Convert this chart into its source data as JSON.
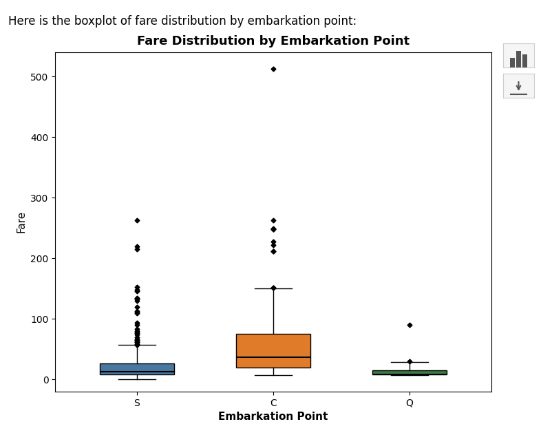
{
  "title": "Fare Distribution by Embarkation Point",
  "xlabel": "Embarkation Point",
  "ylabel": "Fare",
  "categories": [
    "S",
    "C",
    "Q"
  ],
  "colors": [
    "#4878a0",
    "#e07b2a",
    "#3a7d44"
  ],
  "ylim": [
    -20,
    540
  ],
  "yticks": [
    0,
    100,
    200,
    300,
    400,
    500
  ],
  "box_stats": {
    "S": {
      "whislo": 0.0,
      "q1": 8.05,
      "med": 13.0,
      "q3": 26.0,
      "whishi": 56.5,
      "fliers": [
        263.0,
        220.0,
        215.0,
        153.0,
        148.0,
        146.0,
        134.5,
        133.65,
        133.65,
        130.0,
        120.0,
        113.0,
        110.88,
        108.9,
        93.5,
        90.0,
        83.475,
        79.65,
        77.95,
        76.73,
        73.5,
        69.55,
        66.6,
        65.0,
        63.36,
        61.175,
        61.0,
        57.75,
        57.0,
        56.93
      ]
    },
    "C": {
      "whislo": 7.225,
      "q1": 19.0,
      "med": 36.25,
      "q3": 75.0,
      "whishi": 150.0,
      "fliers": [
        512.3292,
        263.0,
        249.0,
        247.5,
        247.5,
        227.525,
        221.7792,
        211.3375,
        211.3375,
        151.55,
        151.55
      ]
    },
    "Q": {
      "whislo": 6.75,
      "q1": 7.75,
      "med": 7.75,
      "q3": 15.5,
      "whishi": 29.125,
      "fliers": [
        90.0,
        29.7
      ]
    }
  },
  "header_text": "Here is the boxplot of fare distribution by embarkation point:",
  "background_color": "#ffffff",
  "plot_background": "#ffffff",
  "title_fontsize": 13,
  "label_fontsize": 11,
  "tick_fontsize": 10,
  "header_fontsize": 12,
  "figsize": [
    8.02,
    6.32
  ],
  "dpi": 100
}
